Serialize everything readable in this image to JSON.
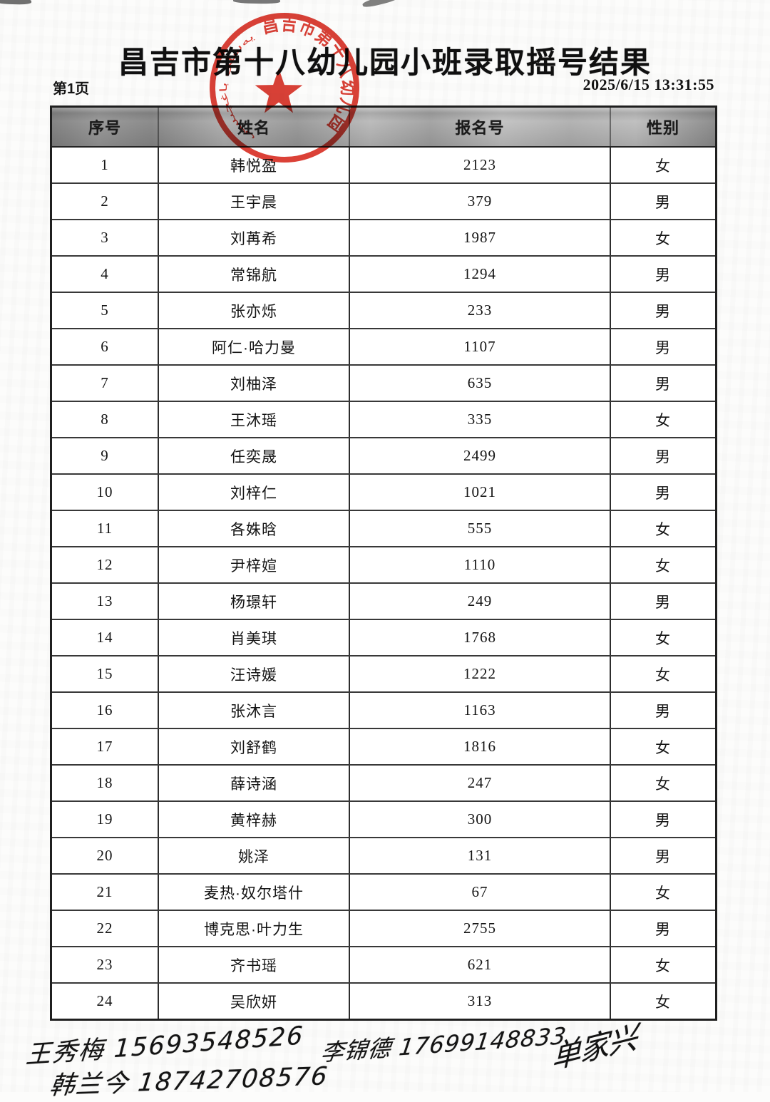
{
  "page": {
    "title": "昌吉市第十八幼儿园小班录取摇号结果",
    "page_label": "第1页",
    "timestamp": "2025/6/15 13:31:55"
  },
  "stamp": {
    "ring_text": "昌吉市第十八幼儿园",
    "left_script": "يەسلى باغچىسى",
    "star_icon": "red-star",
    "color": "#d93227"
  },
  "table": {
    "headers": [
      "序号",
      "姓名",
      "报名号",
      "性别"
    ],
    "rows": [
      [
        "1",
        "韩悦盈",
        "2123",
        "女"
      ],
      [
        "2",
        "王宇晨",
        "379",
        "男"
      ],
      [
        "3",
        "刘苒希",
        "1987",
        "女"
      ],
      [
        "4",
        "常锦航",
        "1294",
        "男"
      ],
      [
        "5",
        "张亦烁",
        "233",
        "男"
      ],
      [
        "6",
        "阿仁·哈力曼",
        "1107",
        "男"
      ],
      [
        "7",
        "刘柚泽",
        "635",
        "男"
      ],
      [
        "8",
        "王沐瑶",
        "335",
        "女"
      ],
      [
        "9",
        "任奕晟",
        "2499",
        "男"
      ],
      [
        "10",
        "刘梓仁",
        "1021",
        "男"
      ],
      [
        "11",
        "各姝晗",
        "555",
        "女"
      ],
      [
        "12",
        "尹梓媗",
        "1110",
        "女"
      ],
      [
        "13",
        "杨璟轩",
        "249",
        "男"
      ],
      [
        "14",
        "肖美琪",
        "1768",
        "女"
      ],
      [
        "15",
        "汪诗媛",
        "1222",
        "女"
      ],
      [
        "16",
        "张沐言",
        "1163",
        "男"
      ],
      [
        "17",
        "刘舒鹤",
        "1816",
        "女"
      ],
      [
        "18",
        "薛诗涵",
        "247",
        "女"
      ],
      [
        "19",
        "黄梓赫",
        "300",
        "男"
      ],
      [
        "20",
        "姚泽",
        "131",
        "男"
      ],
      [
        "21",
        "麦热·奴尔塔什",
        "67",
        "女"
      ],
      [
        "22",
        "博克思·叶力生",
        "2755",
        "男"
      ],
      [
        "23",
        "齐书瑶",
        "621",
        "女"
      ],
      [
        "24",
        "吴欣妍",
        "313",
        "女"
      ]
    ]
  },
  "handwriting": {
    "sig1": "王秀梅 15693548526",
    "sig2": "韩兰今 18742708576",
    "sig3": "李锦德 17699148833",
    "sig4": "单家兴"
  }
}
